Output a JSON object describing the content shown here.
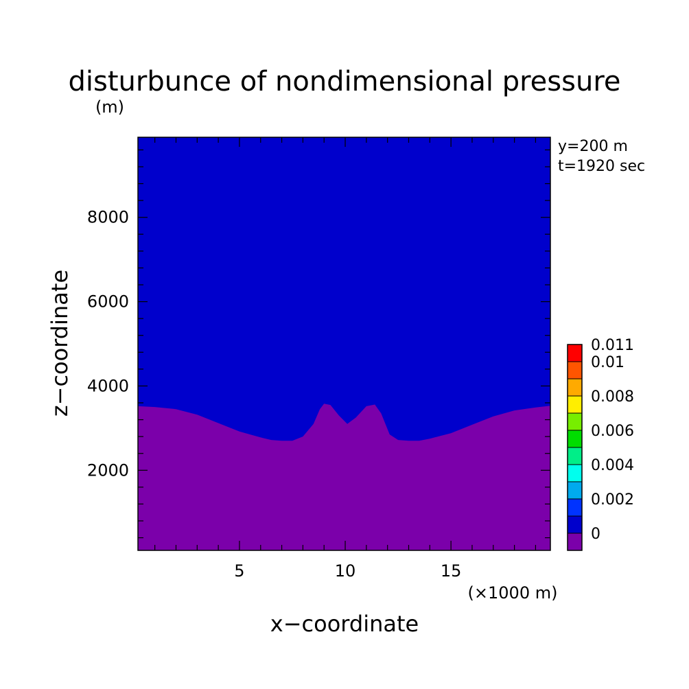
{
  "chart_data": {
    "type": "heatmap",
    "title": "disturbunce of nondimensional pressure",
    "ylabel": "z−coordinate",
    "yunit": "(m)",
    "xlabel": "x−coordinate",
    "xunit": "(×1000 m)",
    "annotations": [
      "y=200 m",
      "t=1920 sec"
    ],
    "xlim": [
      0.2,
      19.7
    ],
    "ylim": [
      100,
      9900
    ],
    "xticks": [
      {
        "value": 5,
        "label": "5"
      },
      {
        "value": 10,
        "label": "10"
      },
      {
        "value": 15,
        "label": "15"
      }
    ],
    "yticks": [
      {
        "value": 2000,
        "label": "2000"
      },
      {
        "value": 4000,
        "label": "4000"
      },
      {
        "value": 6000,
        "label": "6000"
      },
      {
        "value": 8000,
        "label": "8000"
      }
    ],
    "colorbar": {
      "levels": [
        {
          "from": -0.001,
          "to": 0,
          "color": "#7b00aa"
        },
        {
          "from": 0,
          "to": 0.001,
          "color": "#0000cc"
        },
        {
          "from": 0.001,
          "to": 0.002,
          "color": "#0033ff"
        },
        {
          "from": 0.002,
          "to": 0.003,
          "color": "#00aaee"
        },
        {
          "from": 0.003,
          "to": 0.004,
          "color": "#00ffee"
        },
        {
          "from": 0.004,
          "to": 0.005,
          "color": "#00ee88"
        },
        {
          "from": 0.005,
          "to": 0.006,
          "color": "#00dd00"
        },
        {
          "from": 0.006,
          "to": 0.007,
          "color": "#77ee00"
        },
        {
          "from": 0.007,
          "to": 0.008,
          "color": "#ffee00"
        },
        {
          "from": 0.008,
          "to": 0.009,
          "color": "#ffaa00"
        },
        {
          "from": 0.009,
          "to": 0.01,
          "color": "#ff5500"
        },
        {
          "from": 0.01,
          "to": 0.011,
          "color": "#ff0000"
        }
      ],
      "labels": [
        {
          "value": 0,
          "label": "0"
        },
        {
          "value": 0.002,
          "label": "0.002"
        },
        {
          "value": 0.004,
          "label": "0.004"
        },
        {
          "value": 0.006,
          "label": "0.006"
        },
        {
          "value": 0.008,
          "label": "0.008"
        },
        {
          "value": 0.01,
          "label": "0.01"
        },
        {
          "value": 0.011,
          "label": "0.011"
        }
      ]
    },
    "regions": [
      {
        "name": "upper",
        "color": "#0000cc"
      },
      {
        "name": "lower",
        "color": "#7b00aa"
      }
    ],
    "boundary": [
      [
        0.2,
        3520
      ],
      [
        1,
        3500
      ],
      [
        2,
        3450
      ],
      [
        3,
        3320
      ],
      [
        4,
        3120
      ],
      [
        5,
        2920
      ],
      [
        6,
        2780
      ],
      [
        6.5,
        2720
      ],
      [
        7,
        2700
      ],
      [
        7.5,
        2700
      ],
      [
        8,
        2800
      ],
      [
        8.5,
        3100
      ],
      [
        8.8,
        3450
      ],
      [
        9,
        3580
      ],
      [
        9.3,
        3550
      ],
      [
        9.7,
        3300
      ],
      [
        10.1,
        3100
      ],
      [
        10.5,
        3250
      ],
      [
        11,
        3520
      ],
      [
        11.4,
        3560
      ],
      [
        11.7,
        3350
      ],
      [
        12.1,
        2850
      ],
      [
        12.5,
        2720
      ],
      [
        13,
        2700
      ],
      [
        13.5,
        2700
      ],
      [
        14,
        2750
      ],
      [
        15,
        2880
      ],
      [
        16,
        3080
      ],
      [
        17,
        3280
      ],
      [
        18,
        3420
      ],
      [
        19,
        3490
      ],
      [
        19.7,
        3530
      ]
    ]
  }
}
